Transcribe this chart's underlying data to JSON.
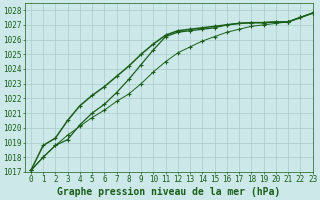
{
  "background_color": "#cce8e8",
  "plot_bg_color": "#cce8e8",
  "grid_color": "#aacccc",
  "line_color": "#1a5e1a",
  "marker_color": "#1a5e1a",
  "title": "Graphe pression niveau de la mer (hPa)",
  "xlim": [
    -0.5,
    23
  ],
  "ylim": [
    1017,
    1028.5
  ],
  "xticks": [
    0,
    1,
    2,
    3,
    4,
    5,
    6,
    7,
    8,
    9,
    10,
    11,
    12,
    13,
    14,
    15,
    16,
    17,
    18,
    19,
    20,
    21,
    22,
    23
  ],
  "yticks": [
    1017,
    1018,
    1019,
    1020,
    1021,
    1022,
    1023,
    1024,
    1025,
    1026,
    1027,
    1028
  ],
  "series": [
    [
      1017.1,
      1018.0,
      1018.8,
      1019.2,
      1020.2,
      1021.0,
      1021.6,
      1022.4,
      1023.3,
      1024.3,
      1025.3,
      1026.2,
      1026.5,
      1026.6,
      1026.7,
      1026.8,
      1027.0,
      1027.1,
      1027.15,
      1027.15,
      1027.2,
      1027.2,
      1027.5,
      1027.8
    ],
    [
      1017.1,
      1018.8,
      1019.3,
      1020.5,
      1021.5,
      1022.2,
      1022.8,
      1023.5,
      1024.2,
      1025.0,
      1025.7,
      1026.3,
      1026.6,
      1026.7,
      1026.8,
      1026.9,
      1027.0,
      1027.1,
      1027.15,
      1027.15,
      1027.2,
      1027.2,
      1027.5,
      1027.8
    ],
    [
      1017.1,
      1018.0,
      1018.8,
      1019.5,
      1020.1,
      1020.7,
      1021.2,
      1021.8,
      1022.3,
      1023.0,
      1023.8,
      1024.5,
      1025.1,
      1025.5,
      1025.9,
      1026.2,
      1026.5,
      1026.7,
      1026.9,
      1027.0,
      1027.1,
      1027.2,
      1027.5,
      1027.8
    ]
  ],
  "font_family": "monospace",
  "title_fontsize": 7.0,
  "tick_fontsize": 5.5,
  "linewidths": [
    0.9,
    1.1,
    0.7
  ]
}
